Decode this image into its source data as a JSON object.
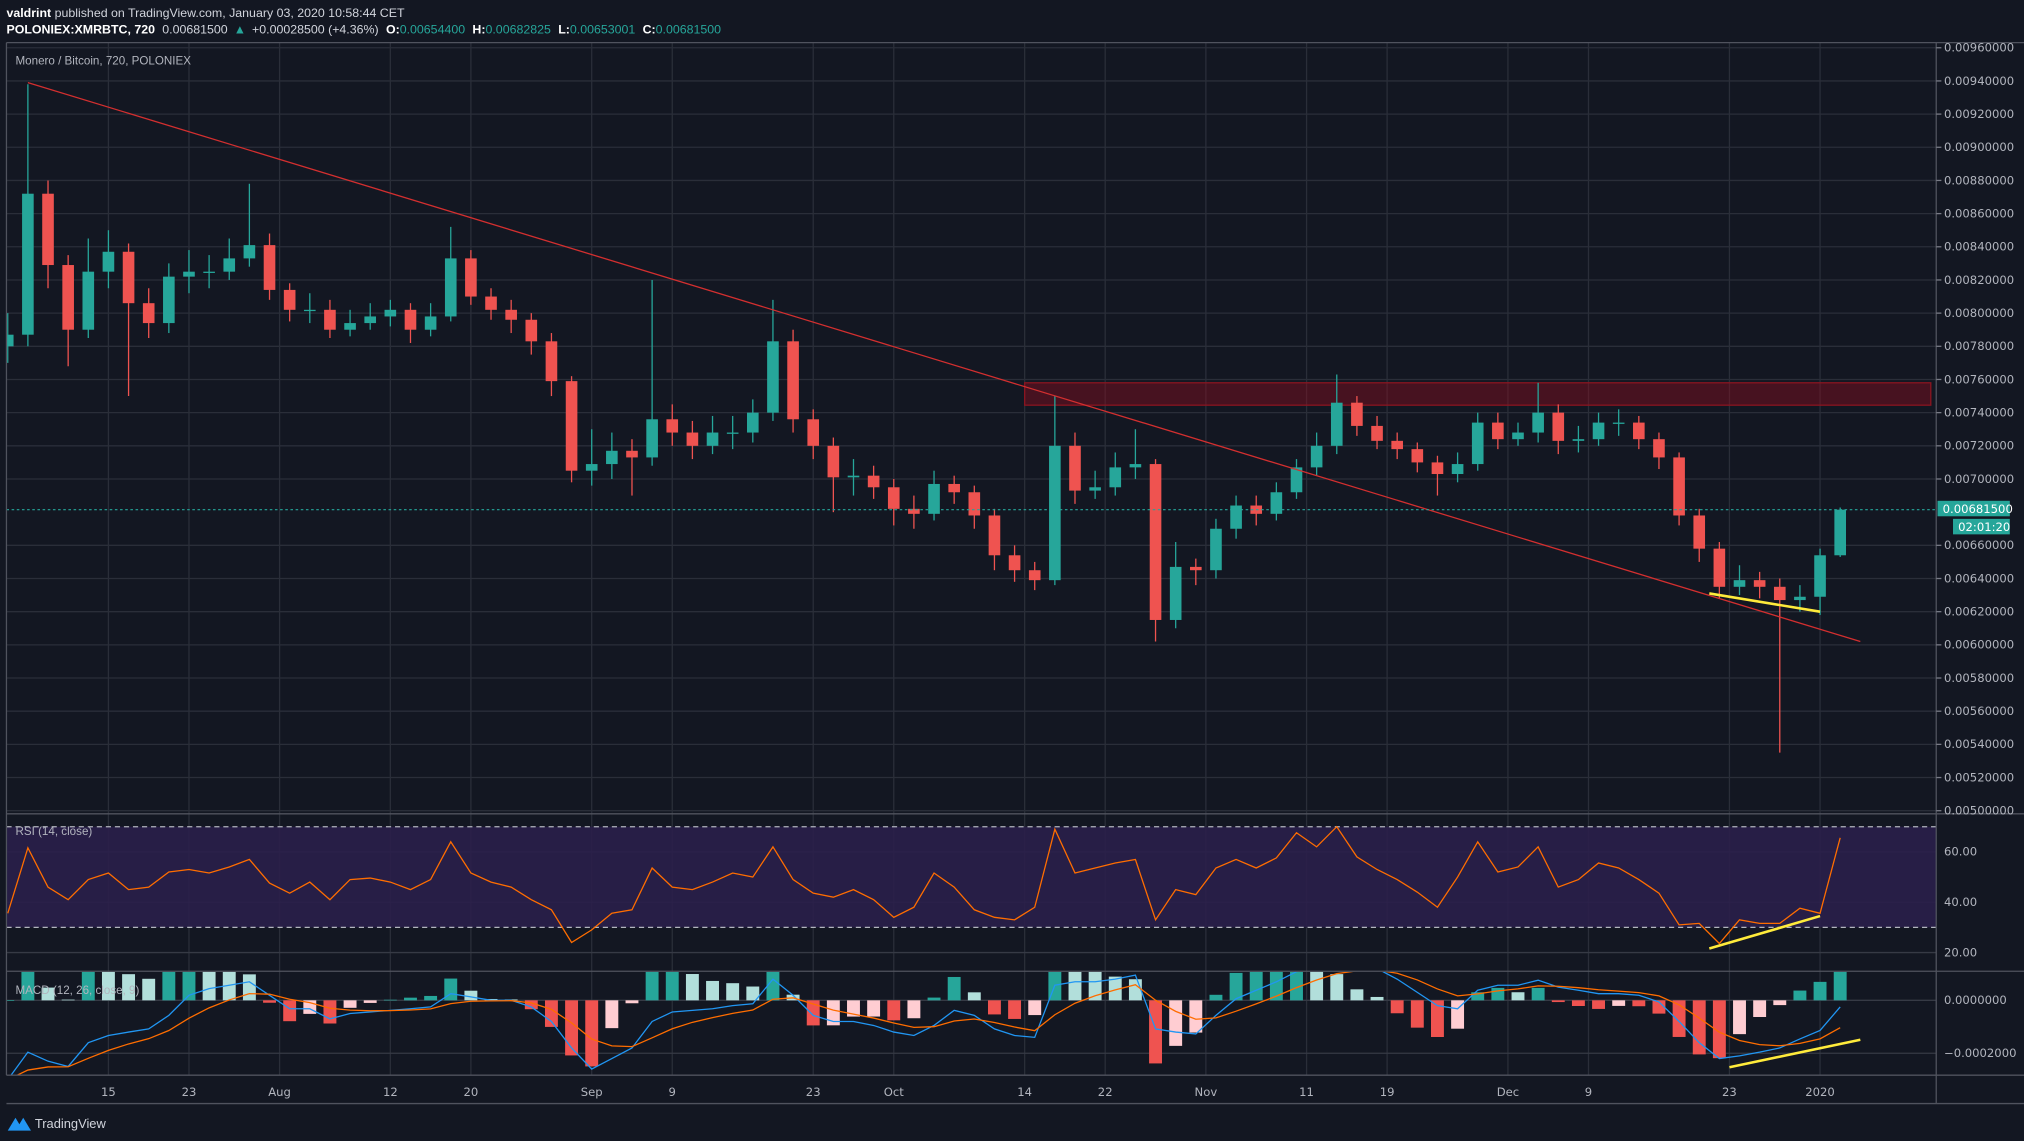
{
  "header": {
    "author": "valdrint",
    "published": " published on TradingView.com, January 03, 2020 10:58:44 CET",
    "symbol": "POLONIEX:XMRBTC, 720",
    "last": "0.00681500",
    "change_arrow": "▲",
    "change": "+0.00028500 (+4.36%)",
    "o_label": "O:",
    "o": "0.00654400",
    "h_label": "H:",
    "h": "0.00682825",
    "l_label": "L:",
    "l": "0.00653001",
    "c_label": "C:",
    "c": "0.00681500"
  },
  "footer": {
    "brand": "TradingView",
    "logo_icon": "tradingview-logo-icon"
  },
  "colors": {
    "background": "#131722",
    "up": "#26a69a",
    "down": "#ef5350",
    "trendline": "#d32f2f",
    "annotation": "#ffeb3b",
    "rsi": "#ff6d00",
    "macd": "#2196f3",
    "signal": "#ff6d00",
    "rsi_band": "#2a1f4a"
  },
  "chart_data": {
    "type": "candlestick",
    "title": "Monero / Bitcoin, 720, POLONIEX",
    "ylim": [
      0.005,
      0.0096
    ],
    "y_ticks": [
      "0.00960000",
      "0.00940000",
      "0.00920000",
      "0.00900000",
      "0.00880000",
      "0.00860000",
      "0.00840000",
      "0.00820000",
      "0.00800000",
      "0.00780000",
      "0.00760000",
      "0.00740000",
      "0.00720000",
      "0.00700000",
      "0.00660000",
      "0.00640000",
      "0.00620000",
      "0.00600000",
      "0.00580000",
      "0.00560000",
      "0.00540000",
      "0.00520000",
      "0.00500000"
    ],
    "x_ticks": [
      {
        "label": "15",
        "date": "2019-07-15"
      },
      {
        "label": "23",
        "date": "2019-07-23"
      },
      {
        "label": "Aug",
        "date": "2019-08-01"
      },
      {
        "label": "12",
        "date": "2019-08-12"
      },
      {
        "label": "20",
        "date": "2019-08-20"
      },
      {
        "label": "Sep",
        "date": "2019-09-01"
      },
      {
        "label": "9",
        "date": "2019-09-09"
      },
      {
        "label": "23",
        "date": "2019-09-23"
      },
      {
        "label": "Oct",
        "date": "2019-10-01"
      },
      {
        "label": "14",
        "date": "2019-10-14"
      },
      {
        "label": "22",
        "date": "2019-10-22"
      },
      {
        "label": "Nov",
        "date": "2019-11-01"
      },
      {
        "label": "11",
        "date": "2019-11-11"
      },
      {
        "label": "19",
        "date": "2019-11-19"
      },
      {
        "label": "Dec",
        "date": "2019-12-01"
      },
      {
        "label": "9",
        "date": "2019-12-09"
      },
      {
        "label": "23",
        "date": "2019-12-23"
      },
      {
        "label": "2020",
        "date": "2020-01-01"
      }
    ],
    "last_price": {
      "value": 0.006815,
      "label": "0.00681500",
      "countdown": "02:01:20"
    },
    "candles_columns": [
      "date",
      "open",
      "high",
      "low",
      "close"
    ],
    "candles": [
      [
        "2019-07-05",
        0.0078,
        0.008,
        0.0077,
        0.00787
      ],
      [
        "2019-07-07",
        0.00787,
        0.00938,
        0.0078,
        0.00872
      ],
      [
        "2019-07-09",
        0.00872,
        0.0088,
        0.00815,
        0.00829
      ],
      [
        "2019-07-11",
        0.00829,
        0.00835,
        0.00768,
        0.0079
      ],
      [
        "2019-07-13",
        0.0079,
        0.00845,
        0.00785,
        0.00825
      ],
      [
        "2019-07-15",
        0.00825,
        0.0085,
        0.00815,
        0.00837
      ],
      [
        "2019-07-17",
        0.00837,
        0.00842,
        0.0075,
        0.00806
      ],
      [
        "2019-07-19",
        0.00806,
        0.00815,
        0.00785,
        0.00794
      ],
      [
        "2019-07-21",
        0.00794,
        0.0083,
        0.00788,
        0.00822
      ],
      [
        "2019-07-23",
        0.00822,
        0.00838,
        0.00812,
        0.00825
      ],
      [
        "2019-07-25",
        0.00825,
        0.00835,
        0.00815,
        0.00825
      ],
      [
        "2019-07-27",
        0.00825,
        0.00845,
        0.0082,
        0.00833
      ],
      [
        "2019-07-29",
        0.00833,
        0.00878,
        0.00828,
        0.00841
      ],
      [
        "2019-07-31",
        0.00841,
        0.00848,
        0.00808,
        0.00814
      ],
      [
        "2019-08-02",
        0.00814,
        0.00818,
        0.00795,
        0.00802
      ],
      [
        "2019-08-04",
        0.00802,
        0.00812,
        0.00794,
        0.00802
      ],
      [
        "2019-08-06",
        0.00802,
        0.00808,
        0.00785,
        0.0079
      ],
      [
        "2019-08-08",
        0.0079,
        0.00802,
        0.00786,
        0.00794
      ],
      [
        "2019-08-10",
        0.00794,
        0.00806,
        0.0079,
        0.00798
      ],
      [
        "2019-08-12",
        0.00798,
        0.00808,
        0.00792,
        0.00802
      ],
      [
        "2019-08-14",
        0.00802,
        0.00806,
        0.00782,
        0.0079
      ],
      [
        "2019-08-16",
        0.0079,
        0.00806,
        0.00786,
        0.00798
      ],
      [
        "2019-08-18",
        0.00798,
        0.00852,
        0.00795,
        0.00833
      ],
      [
        "2019-08-20",
        0.00833,
        0.00838,
        0.00805,
        0.0081
      ],
      [
        "2019-08-22",
        0.0081,
        0.00815,
        0.00796,
        0.00802
      ],
      [
        "2019-08-24",
        0.00802,
        0.00808,
        0.00788,
        0.00796
      ],
      [
        "2019-08-26",
        0.00796,
        0.008,
        0.00775,
        0.00783
      ],
      [
        "2019-08-28",
        0.00783,
        0.00788,
        0.0075,
        0.00759
      ],
      [
        "2019-08-30",
        0.00759,
        0.00762,
        0.00698,
        0.00705
      ],
      [
        "2019-09-01",
        0.00705,
        0.0073,
        0.00696,
        0.00709
      ],
      [
        "2019-09-03",
        0.00709,
        0.00728,
        0.007,
        0.00717
      ],
      [
        "2019-09-05",
        0.00717,
        0.00724,
        0.0069,
        0.00713
      ],
      [
        "2019-09-07",
        0.00713,
        0.0082,
        0.00708,
        0.00736
      ],
      [
        "2019-09-09",
        0.00736,
        0.00745,
        0.0072,
        0.00728
      ],
      [
        "2019-09-11",
        0.00728,
        0.00735,
        0.00712,
        0.0072
      ],
      [
        "2019-09-13",
        0.0072,
        0.00738,
        0.00715,
        0.00728
      ],
      [
        "2019-09-15",
        0.00728,
        0.00738,
        0.00718,
        0.00728
      ],
      [
        "2019-09-17",
        0.00728,
        0.00748,
        0.00722,
        0.0074
      ],
      [
        "2019-09-19",
        0.0074,
        0.00808,
        0.00735,
        0.00783
      ],
      [
        "2019-09-21",
        0.00783,
        0.0079,
        0.00728,
        0.00736
      ],
      [
        "2019-09-23",
        0.00736,
        0.00742,
        0.00712,
        0.0072
      ],
      [
        "2019-09-25",
        0.0072,
        0.00725,
        0.0068,
        0.00701
      ],
      [
        "2019-09-27",
        0.00701,
        0.00712,
        0.0069,
        0.00702
      ],
      [
        "2019-09-29",
        0.00702,
        0.00708,
        0.00688,
        0.00695
      ],
      [
        "2019-10-01",
        0.00695,
        0.007,
        0.00672,
        0.00682
      ],
      [
        "2019-10-03",
        0.00682,
        0.0069,
        0.0067,
        0.00679
      ],
      [
        "2019-10-05",
        0.00679,
        0.00705,
        0.00675,
        0.00697
      ],
      [
        "2019-10-07",
        0.00697,
        0.00702,
        0.00685,
        0.00692
      ],
      [
        "2019-10-09",
        0.00692,
        0.00696,
        0.0067,
        0.00678
      ],
      [
        "2019-10-11",
        0.00678,
        0.00682,
        0.00645,
        0.00654
      ],
      [
        "2019-10-13",
        0.00654,
        0.0066,
        0.00638,
        0.00645
      ],
      [
        "2019-10-15",
        0.00645,
        0.0065,
        0.00633,
        0.00639
      ],
      [
        "2019-10-17",
        0.00639,
        0.0075,
        0.00636,
        0.0072
      ],
      [
        "2019-10-19",
        0.0072,
        0.00728,
        0.00685,
        0.00693
      ],
      [
        "2019-10-21",
        0.00693,
        0.00705,
        0.00688,
        0.00695
      ],
      [
        "2019-10-23",
        0.00695,
        0.00716,
        0.0069,
        0.00707
      ],
      [
        "2019-10-25",
        0.00707,
        0.0073,
        0.007,
        0.00709
      ],
      [
        "2019-10-27",
        0.00709,
        0.00712,
        0.00602,
        0.00615
      ],
      [
        "2019-10-29",
        0.00615,
        0.00662,
        0.0061,
        0.00647
      ],
      [
        "2019-10-31",
        0.00647,
        0.00652,
        0.00636,
        0.00645
      ],
      [
        "2019-11-02",
        0.00645,
        0.00676,
        0.0064,
        0.0067
      ],
      [
        "2019-11-04",
        0.0067,
        0.0069,
        0.00664,
        0.00684
      ],
      [
        "2019-11-06",
        0.00684,
        0.0069,
        0.00672,
        0.00679
      ],
      [
        "2019-11-08",
        0.00679,
        0.00698,
        0.00675,
        0.00692
      ],
      [
        "2019-11-10",
        0.00692,
        0.00712,
        0.00688,
        0.00707
      ],
      [
        "2019-11-12",
        0.00707,
        0.00728,
        0.00702,
        0.0072
      ],
      [
        "2019-11-14",
        0.0072,
        0.00763,
        0.00715,
        0.00746
      ],
      [
        "2019-11-16",
        0.00746,
        0.0075,
        0.00726,
        0.00732
      ],
      [
        "2019-11-18",
        0.00732,
        0.00738,
        0.00718,
        0.00723
      ],
      [
        "2019-11-20",
        0.00723,
        0.00728,
        0.00712,
        0.00718
      ],
      [
        "2019-11-22",
        0.00718,
        0.00722,
        0.00704,
        0.0071
      ],
      [
        "2019-11-24",
        0.0071,
        0.00714,
        0.0069,
        0.00703
      ],
      [
        "2019-11-26",
        0.00703,
        0.00716,
        0.00698,
        0.00709
      ],
      [
        "2019-11-28",
        0.00709,
        0.0074,
        0.00705,
        0.00734
      ],
      [
        "2019-11-30",
        0.00734,
        0.0074,
        0.00718,
        0.00724
      ],
      [
        "2019-12-02",
        0.00724,
        0.00734,
        0.0072,
        0.00728
      ],
      [
        "2019-12-04",
        0.00728,
        0.00758,
        0.00722,
        0.0074
      ],
      [
        "2019-12-06",
        0.0074,
        0.00745,
        0.00715,
        0.00723
      ],
      [
        "2019-12-08",
        0.00723,
        0.00732,
        0.00716,
        0.00724
      ],
      [
        "2019-12-10",
        0.00724,
        0.0074,
        0.0072,
        0.00734
      ],
      [
        "2019-12-12",
        0.00734,
        0.00742,
        0.00726,
        0.00734
      ],
      [
        "2019-12-14",
        0.00734,
        0.00738,
        0.00718,
        0.00724
      ],
      [
        "2019-12-16",
        0.00724,
        0.00728,
        0.00706,
        0.00713
      ],
      [
        "2019-12-18",
        0.00713,
        0.00716,
        0.00672,
        0.00678
      ],
      [
        "2019-12-20",
        0.00678,
        0.00682,
        0.0065,
        0.00658
      ],
      [
        "2019-12-22",
        0.00658,
        0.00662,
        0.00628,
        0.00635
      ],
      [
        "2019-12-24",
        0.00635,
        0.00648,
        0.0063,
        0.00639
      ],
      [
        "2019-12-26",
        0.00639,
        0.00644,
        0.00628,
        0.00635
      ],
      [
        "2019-12-28",
        0.00635,
        0.0064,
        0.00535,
        0.00627
      ],
      [
        "2019-12-30",
        0.00627,
        0.00636,
        0.0062,
        0.00629
      ],
      [
        "2020-01-01",
        0.00629,
        0.00658,
        0.00618,
        0.00654
      ],
      [
        "2020-01-03",
        0.00654,
        0.006828,
        0.00653,
        0.006815
      ]
    ],
    "drawings": {
      "descending_trendline": {
        "from": [
          "2019-07-07",
          0.00939
        ],
        "to": [
          "2020-01-05",
          0.00602
        ]
      },
      "resistance_zone": {
        "from_date": "2019-10-14",
        "to_date": "2020-01-12",
        "top": 0.00758,
        "bottom": 0.007445
      },
      "price_support_line": {
        "from": [
          "2019-12-21",
          0.00631
        ],
        "to": [
          "2020-01-01",
          0.0062
        ]
      },
      "rsi_divergence_line": {
        "from": [
          "2019-12-21",
          21.6
        ],
        "to": [
          "2020-01-01",
          34.5
        ]
      },
      "macd_divergence_line": {
        "from": [
          "2019-12-23",
          -0.000253
        ],
        "to": [
          "2020-01-05",
          -0.000149
        ]
      }
    },
    "rsi": {
      "title": "RSI (14, close)",
      "upper_band": 70,
      "lower_band": 30,
      "ticks": [
        {
          "value": 60,
          "label": "60.00"
        },
        {
          "value": 40,
          "label": "40.00"
        },
        {
          "value": 20,
          "label": "20.00"
        }
      ],
      "values": [
        35.6,
        61.6,
        46,
        41,
        49,
        51.6,
        45,
        46,
        52,
        53,
        51.6,
        54,
        57,
        47.6,
        43.6,
        48,
        41,
        49,
        49.6,
        48,
        45,
        49,
        64,
        51.6,
        48,
        46,
        41,
        37,
        24,
        29,
        35.6,
        37,
        53.6,
        46,
        45,
        48,
        51.6,
        50,
        62,
        49,
        43.6,
        42,
        45,
        41,
        34,
        38,
        51.6,
        46,
        37,
        34,
        33,
        38,
        69,
        51.6,
        53.6,
        55.6,
        57,
        33,
        45,
        43,
        53.6,
        57,
        53.6,
        57.6,
        67.6,
        62,
        70,
        58,
        53,
        49,
        44,
        38,
        50,
        64,
        52,
        54,
        62,
        46,
        49,
        55.6,
        53.6,
        49,
        43.6,
        31,
        31.6,
        23.6,
        33,
        31.6,
        31.6,
        37.6,
        35.6,
        65.6
      ]
    },
    "macd": {
      "title": "MACD (12, 26, close, 9)",
      "ticks": [
        {
          "value": 0,
          "label": "0.0000000"
        },
        {
          "value": -0.0002,
          "label": "−0.0002000"
        }
      ],
      "values": [
        -0.0003,
        -0.000196,
        -0.00023,
        -0.00025,
        -0.00016,
        -0.000133,
        -0.00012,
        -0.000108,
        -5.7e-05,
        1.9e-05,
        4.4e-05,
        5.7e-05,
        7e-05,
        1.9e-05,
        -3.2e-05,
        -3.2e-05,
        -7e-05,
        -5e-05,
        -4.4e-05,
        -3.8e-05,
        -3.2e-05,
        -2.5e-05,
        2.5e-05,
        1.3e-05,
        0,
        0,
        -2.5e-05,
        -8e-05,
        -0.00018,
        -0.00026,
        -0.00022,
        -0.00018,
        -8e-05,
        -4.4e-05,
        -3.8e-05,
        -3.2e-05,
        -2e-05,
        -1.3e-05,
        8e-05,
        1.9e-05,
        -5.7e-05,
        -8e-05,
        -8e-05,
        -9.5e-05,
        -0.00012,
        -0.000133,
        -9.5e-05,
        -3.8e-05,
        -5.7e-05,
        -0.000108,
        -0.000133,
        -0.00014,
        5.7e-05,
        7e-05,
        7e-05,
        8e-05,
        9.5e-05,
        -0.000108,
        -0.00012,
        -0.000127,
        -5.7e-05,
        6e-06,
        3.8e-05,
        7e-05,
        0.000108,
        0.00013,
        0.000146,
        0.00013,
        0.00012,
        8e-05,
        3e-05,
        -2e-05,
        -3.2e-05,
        3.8e-05,
        5.7e-05,
        5.7e-05,
        7.6e-05,
        5e-05,
        3.8e-05,
        2.5e-05,
        2.5e-05,
        1.9e-05,
        -6e-06,
        -8e-05,
        -0.00016,
        -0.00022,
        -0.00021,
        -0.000196,
        -0.00018,
        -0.000146,
        -0.000114,
        -2.5e-05
      ]
    }
  }
}
